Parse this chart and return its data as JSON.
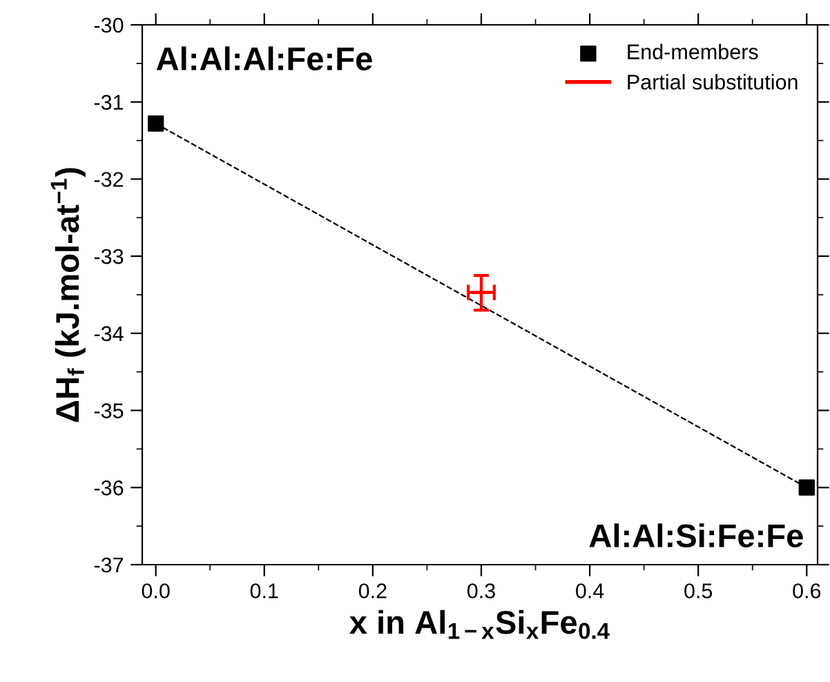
{
  "chart_data": {
    "type": "scatter",
    "xlabel": "x in Al$_{1−x}$Si$_{x}$Fe$_{0.4}$",
    "ylabel": "ΔH$_{f}$ (kJ.mol-at$^{−1}$)",
    "series": [
      {
        "type": "line",
        "color": "#000000",
        "line_style": "dashed",
        "marker": "none",
        "x": [
          0.0,
          0.6
        ],
        "values": [
          -31.28,
          -36.0
        ]
      },
      {
        "name": "End-members",
        "color": "#000000",
        "marker": "square",
        "x": [
          0.0,
          0.6
        ],
        "values": [
          -31.28,
          -36.0
        ]
      },
      {
        "name": "Partial substitution",
        "color": "#ff0000",
        "marker": "cross",
        "x": [
          0.3
        ],
        "values": [
          -33.47
        ],
        "errors": [
          [
            -33.7,
            -33.25
          ]
        ],
        "xerrors": [
          [
            0.288,
            0.312
          ]
        ]
      }
    ],
    "annotations": [
      "Al:Al:Al:Fe:Fe",
      "Al:Al:Si:Fe:Fe"
    ],
    "xlim": [
      -0.0125,
      0.61
    ],
    "ylim": [
      -37,
      -30
    ],
    "xticks": [
      {
        "value": 0.0,
        "label": "0.0"
      },
      0.1,
      0.2,
      0.3,
      0.4,
      0.5,
      0.6
    ],
    "yticks": [
      -37,
      -36,
      -35,
      -34,
      -33,
      -32,
      -31,
      -30
    ],
    "legend": "top right",
    "grid": false
  }
}
